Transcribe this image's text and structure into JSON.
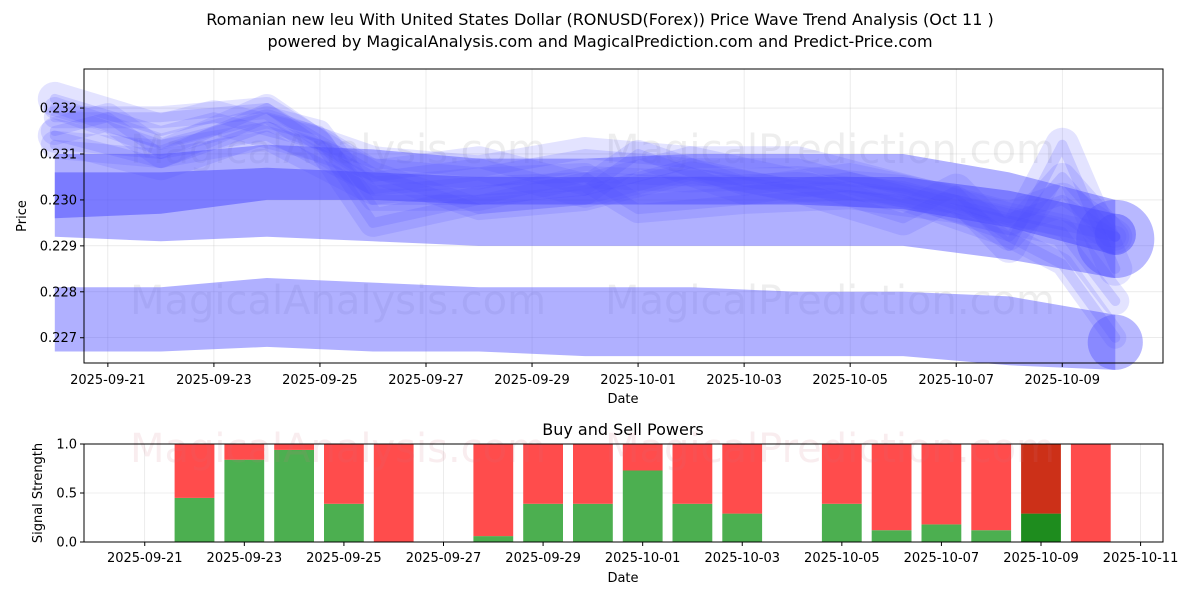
{
  "header": {
    "title": "Romanian new leu With United States Dollar (RONUSD(Forex)) Price Wave Trend Analysis (Oct 11 )",
    "subtitle": "powered by MagicalAnalysis.com and MagicalPrediction.com and Predict-Price.com"
  },
  "watermarks": [
    "MagicalAnalysis.com",
    "MagicalPrediction.com"
  ],
  "colors": {
    "wave": "#5050ff",
    "buy": "#4caf50",
    "sell": "#ff4c4c",
    "buy_dark": "#1e8c1e",
    "sell_dark": "#cc3018"
  },
  "chart_data": [
    {
      "type": "area",
      "title": "",
      "xlabel": "Date",
      "ylabel": "Price",
      "x_range": [
        "2025-09-20",
        "2025-10-11"
      ],
      "ylim": [
        0.22645,
        0.23285
      ],
      "x_ticks": [
        "2025-09-21",
        "2025-09-23",
        "2025-09-25",
        "2025-09-27",
        "2025-09-29",
        "2025-10-01",
        "2025-10-03",
        "2025-10-05",
        "2025-10-07",
        "2025-10-09"
      ],
      "y_ticks": [
        "0.227",
        "0.228",
        "0.229",
        "0.230",
        "0.231",
        "0.232"
      ],
      "grid": true,
      "series": [
        {
          "name": "band-upper",
          "dates": [
            "2025-09-20",
            "2025-09-22",
            "2025-09-24",
            "2025-09-26",
            "2025-09-28",
            "2025-09-30",
            "2025-10-02",
            "2025-10-04",
            "2025-10-06",
            "2025-10-08",
            "2025-10-10"
          ],
          "upper": [
            0.231,
            0.231,
            0.2312,
            0.2311,
            0.2309,
            0.2309,
            0.231,
            0.231,
            0.231,
            0.2306,
            0.23
          ],
          "lower": [
            0.2292,
            0.2291,
            0.2292,
            0.2291,
            0.229,
            0.229,
            0.229,
            0.229,
            0.229,
            0.2287,
            0.2283
          ]
        },
        {
          "name": "band-mid",
          "dates": [
            "2025-09-20",
            "2025-09-22",
            "2025-09-24",
            "2025-09-26",
            "2025-09-28",
            "2025-09-30",
            "2025-10-02",
            "2025-10-04",
            "2025-10-06",
            "2025-10-08",
            "2025-10-10"
          ],
          "upper": [
            0.2306,
            0.2306,
            0.2307,
            0.2306,
            0.2305,
            0.2305,
            0.2305,
            0.2305,
            0.2305,
            0.2302,
            0.2297
          ],
          "lower": [
            0.2296,
            0.2297,
            0.23,
            0.23,
            0.2299,
            0.2299,
            0.2299,
            0.2299,
            0.2298,
            0.2294,
            0.2288
          ]
        },
        {
          "name": "band-lower",
          "dates": [
            "2025-09-20",
            "2025-09-22",
            "2025-09-24",
            "2025-09-26",
            "2025-09-28",
            "2025-09-30",
            "2025-10-02",
            "2025-10-04",
            "2025-10-06",
            "2025-10-08",
            "2025-10-10"
          ],
          "upper": [
            0.2281,
            0.2281,
            0.2283,
            0.2282,
            0.2281,
            0.2281,
            0.2281,
            0.228,
            0.228,
            0.2279,
            0.2275
          ],
          "lower": [
            0.2267,
            0.2267,
            0.2268,
            0.2267,
            0.2267,
            0.2266,
            0.2266,
            0.2266,
            0.2266,
            0.2264,
            0.2263
          ]
        },
        {
          "name": "wave-1",
          "dates": [
            "2025-09-20",
            "2025-09-22",
            "2025-09-24",
            "2025-09-25",
            "2025-09-26",
            "2025-09-28",
            "2025-09-30",
            "2025-10-02",
            "2025-10-04",
            "2025-10-06",
            "2025-10-08",
            "2025-10-10"
          ],
          "values": [
            0.232,
            0.2312,
            0.2318,
            0.2315,
            0.23,
            0.23,
            0.2305,
            0.2304,
            0.2305,
            0.2303,
            0.2297,
            0.2292
          ]
        },
        {
          "name": "wave-2",
          "dates": [
            "2025-09-20",
            "2025-09-21",
            "2025-09-22",
            "2025-09-24",
            "2025-09-25",
            "2025-09-26",
            "2025-09-28",
            "2025-09-30",
            "2025-10-01",
            "2025-10-03",
            "2025-10-05",
            "2025-10-07",
            "2025-10-08",
            "2025-10-09",
            "2025-10-10"
          ],
          "values": [
            0.2315,
            0.2318,
            0.231,
            0.232,
            0.2312,
            0.2295,
            0.23,
            0.2302,
            0.231,
            0.2302,
            0.2305,
            0.23,
            0.2292,
            0.2305,
            0.2292
          ]
        },
        {
          "name": "wave-3",
          "dates": [
            "2025-09-20",
            "2025-09-22",
            "2025-09-23",
            "2025-09-25",
            "2025-09-26",
            "2025-09-28",
            "2025-09-30",
            "2025-10-02",
            "2025-10-04",
            "2025-10-06",
            "2025-10-07",
            "2025-10-08",
            "2025-10-09",
            "2025-10-10"
          ],
          "values": [
            0.2322,
            0.2315,
            0.2318,
            0.2312,
            0.2305,
            0.2308,
            0.2302,
            0.2308,
            0.2303,
            0.2296,
            0.2302,
            0.229,
            0.2312,
            0.2285
          ]
        },
        {
          "name": "wave-4",
          "dates": [
            "2025-09-20",
            "2025-09-22",
            "2025-09-24",
            "2025-09-26",
            "2025-09-28",
            "2025-09-30",
            "2025-10-02",
            "2025-10-04",
            "2025-10-06",
            "2025-10-08",
            "2025-10-09",
            "2025-10-10"
          ],
          "values": [
            0.2318,
            0.2318,
            0.232,
            0.2306,
            0.2298,
            0.23,
            0.2306,
            0.2302,
            0.23,
            0.2292,
            0.2286,
            0.227
          ]
        },
        {
          "name": "wave-5",
          "dates": [
            "2025-09-20",
            "2025-09-22",
            "2025-09-24",
            "2025-09-26",
            "2025-09-28",
            "2025-09-30",
            "2025-10-01",
            "2025-10-03",
            "2025-10-05",
            "2025-10-07",
            "2025-10-09",
            "2025-10-10"
          ],
          "values": [
            0.2312,
            0.231,
            0.2314,
            0.2302,
            0.2304,
            0.2305,
            0.2298,
            0.23,
            0.2301,
            0.2298,
            0.2293,
            0.2278
          ]
        },
        {
          "name": "wave-6",
          "dates": [
            "2025-09-20",
            "2025-09-22",
            "2025-09-24",
            "2025-09-26",
            "2025-09-28",
            "2025-09-30",
            "2025-10-02",
            "2025-10-04",
            "2025-10-06",
            "2025-10-08",
            "2025-10-09",
            "2025-10-10"
          ],
          "values": [
            0.2314,
            0.2308,
            0.2316,
            0.2308,
            0.2306,
            0.231,
            0.2308,
            0.2308,
            0.2302,
            0.2296,
            0.23,
            0.2292
          ]
        }
      ]
    },
    {
      "type": "bar",
      "title": "Buy and Sell Powers",
      "xlabel": "Date",
      "ylabel": "Signal Strength",
      "ylim": [
        0,
        1
      ],
      "x_range": [
        "2025-09-20",
        "2025-10-11"
      ],
      "x_ticks": [
        "2025-09-21",
        "2025-09-23",
        "2025-09-25",
        "2025-09-27",
        "2025-09-29",
        "2025-10-01",
        "2025-10-03",
        "2025-10-05",
        "2025-10-07",
        "2025-10-09",
        "2025-10-11"
      ],
      "y_ticks": [
        "0.0",
        "0.5",
        "1.0"
      ],
      "grid": true,
      "categories": [
        "2025-09-22",
        "2025-09-23",
        "2025-09-24",
        "2025-09-25",
        "2025-09-26",
        "2025-09-28",
        "2025-09-29",
        "2025-09-30",
        "2025-10-01",
        "2025-10-02",
        "2025-10-03",
        "2025-10-05",
        "2025-10-06",
        "2025-10-07",
        "2025-10-08",
        "2025-10-09",
        "2025-10-10"
      ],
      "series": [
        {
          "name": "Buy",
          "values": [
            0.45,
            0.84,
            0.94,
            0.39,
            0.0,
            0.06,
            0.39,
            0.39,
            0.73,
            0.39,
            0.29,
            0.39,
            0.12,
            0.18,
            0.12,
            0.29,
            0.0
          ]
        },
        {
          "name": "Sell",
          "values": [
            0.55,
            0.16,
            0.06,
            0.61,
            1.0,
            0.94,
            0.61,
            0.61,
            0.27,
            0.61,
            0.71,
            0.61,
            0.88,
            0.82,
            0.88,
            0.71,
            1.0
          ]
        }
      ],
      "highlight": "2025-10-09"
    }
  ]
}
